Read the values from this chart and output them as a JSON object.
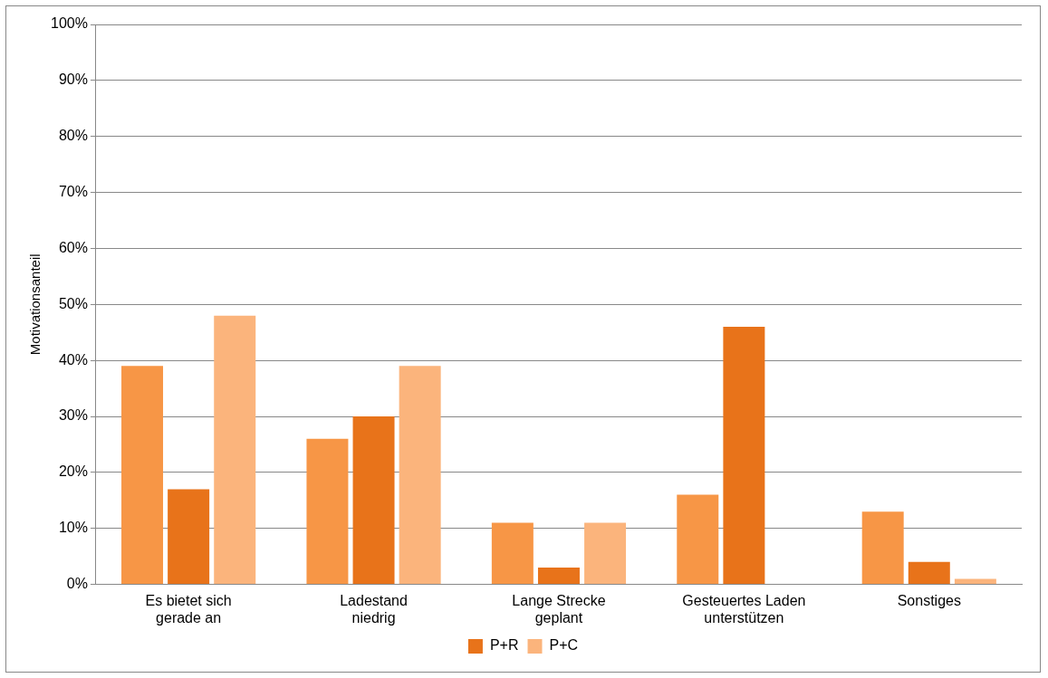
{
  "chart_data": {
    "type": "bar",
    "ylabel": "Motivationsanteil",
    "categories": [
      "Es bietet sich\ngerade an",
      "Ladestand\nniedrig",
      "Lange Strecke\ngeplant",
      "Gesteuertes Laden\nunterstützen",
      "Sonstiges"
    ],
    "series": [
      {
        "color": "#f79646",
        "values": [
          39,
          26,
          11,
          16,
          13
        ]
      },
      {
        "name": "P+R",
        "color": "#e8731a",
        "values": [
          17,
          30,
          3,
          46,
          4
        ]
      },
      {
        "name": "P+C",
        "color": "#fbb47c",
        "values": [
          48,
          39,
          11,
          null,
          1
        ]
      }
    ],
    "ylim": [
      0,
      100
    ],
    "yticks": [
      {
        "value": 0,
        "label": "0%"
      },
      {
        "value": 10,
        "label": "10%"
      },
      {
        "value": 20,
        "label": "20%"
      },
      {
        "value": 30,
        "label": "30%"
      },
      {
        "value": 40,
        "label": "40%"
      },
      {
        "value": 50,
        "label": "50%"
      },
      {
        "value": 60,
        "label": "60%"
      },
      {
        "value": 70,
        "label": "70%"
      },
      {
        "value": 80,
        "label": "80%"
      },
      {
        "value": 90,
        "label": "90%"
      },
      {
        "value": 100,
        "label": "100%"
      }
    ],
    "grid": "y",
    "legend": "bottom"
  }
}
